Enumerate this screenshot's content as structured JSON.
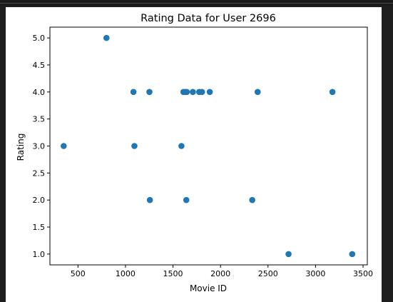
{
  "chart_data": {
    "type": "scatter",
    "title": "Rating Data for User 2696",
    "xlabel": "Movie ID",
    "ylabel": "Rating",
    "xlim": [
      205,
      3545
    ],
    "ylim": [
      0.8,
      5.2
    ],
    "xticks": [
      500,
      1000,
      1500,
      2000,
      2500,
      3000,
      3500
    ],
    "xtick_labels": [
      "500",
      "1000",
      "1500",
      "2000",
      "2500",
      "3000",
      "3500"
    ],
    "yticks": [
      1.0,
      1.5,
      2.0,
      2.5,
      3.0,
      3.5,
      4.0,
      4.5,
      5.0
    ],
    "ytick_labels": [
      "1.0",
      "1.5",
      "2.0",
      "2.5",
      "3.0",
      "3.5",
      "4.0",
      "4.5",
      "5.0"
    ],
    "grid": false,
    "marker_color": "#1f77b4",
    "points": [
      {
        "x": 350,
        "y": 3.0
      },
      {
        "x": 800,
        "y": 5.0
      },
      {
        "x": 1084,
        "y": 4.0
      },
      {
        "x": 1094,
        "y": 3.0
      },
      {
        "x": 1252,
        "y": 4.0
      },
      {
        "x": 1257,
        "y": 2.0
      },
      {
        "x": 1589,
        "y": 3.0
      },
      {
        "x": 1610,
        "y": 4.0
      },
      {
        "x": 1630,
        "y": 4.0
      },
      {
        "x": 1640,
        "y": 2.0
      },
      {
        "x": 1645,
        "y": 4.0
      },
      {
        "x": 1709,
        "y": 4.0
      },
      {
        "x": 1776,
        "y": 4.0
      },
      {
        "x": 1805,
        "y": 4.0
      },
      {
        "x": 1887,
        "y": 4.0
      },
      {
        "x": 2334,
        "y": 2.0
      },
      {
        "x": 2391,
        "y": 4.0
      },
      {
        "x": 2716,
        "y": 1.0
      },
      {
        "x": 3178,
        "y": 4.0
      },
      {
        "x": 3386,
        "y": 1.0
      }
    ]
  }
}
